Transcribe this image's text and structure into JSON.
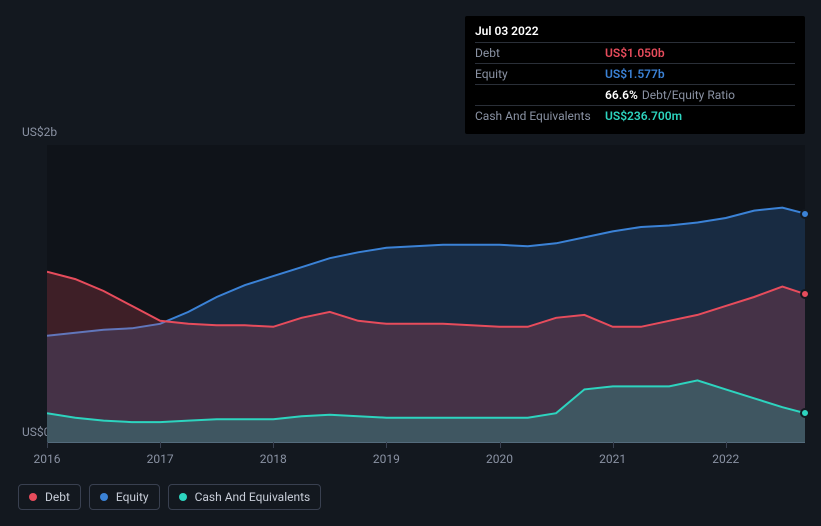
{
  "chart": {
    "type": "area",
    "background_color": "#13181f",
    "plot_background_color": "#0f1319",
    "grid_color": "#394050",
    "axis_text_color": "#8a92a3",
    "y_axis": {
      "labels": [
        "US$2b",
        "US$0"
      ],
      "min": 0,
      "max": 2.0,
      "label_fontsize": 12
    },
    "x_axis": {
      "labels": [
        "2016",
        "2017",
        "2018",
        "2019",
        "2020",
        "2021",
        "2022"
      ],
      "min": 2016.0,
      "max": 2022.7,
      "label_fontsize": 12
    },
    "series": [
      {
        "name": "Equity",
        "color": "#3b82d6",
        "points": [
          [
            2016.0,
            0.72
          ],
          [
            2016.25,
            0.74
          ],
          [
            2016.5,
            0.76
          ],
          [
            2016.75,
            0.77
          ],
          [
            2017.0,
            0.8
          ],
          [
            2017.25,
            0.88
          ],
          [
            2017.5,
            0.98
          ],
          [
            2017.75,
            1.06
          ],
          [
            2018.0,
            1.12
          ],
          [
            2018.25,
            1.18
          ],
          [
            2018.5,
            1.24
          ],
          [
            2018.75,
            1.28
          ],
          [
            2019.0,
            1.31
          ],
          [
            2019.25,
            1.32
          ],
          [
            2019.5,
            1.33
          ],
          [
            2019.75,
            1.33
          ],
          [
            2020.0,
            1.33
          ],
          [
            2020.25,
            1.32
          ],
          [
            2020.5,
            1.34
          ],
          [
            2020.75,
            1.38
          ],
          [
            2021.0,
            1.42
          ],
          [
            2021.25,
            1.45
          ],
          [
            2021.5,
            1.46
          ],
          [
            2021.75,
            1.48
          ],
          [
            2022.0,
            1.51
          ],
          [
            2022.25,
            1.56
          ],
          [
            2022.5,
            1.58
          ],
          [
            2022.7,
            1.54
          ]
        ]
      },
      {
        "name": "Debt",
        "color": "#e74c5c",
        "points": [
          [
            2016.0,
            1.15
          ],
          [
            2016.25,
            1.1
          ],
          [
            2016.5,
            1.02
          ],
          [
            2016.75,
            0.92
          ],
          [
            2017.0,
            0.82
          ],
          [
            2017.25,
            0.8
          ],
          [
            2017.5,
            0.79
          ],
          [
            2017.75,
            0.79
          ],
          [
            2018.0,
            0.78
          ],
          [
            2018.25,
            0.84
          ],
          [
            2018.5,
            0.88
          ],
          [
            2018.75,
            0.82
          ],
          [
            2019.0,
            0.8
          ],
          [
            2019.25,
            0.8
          ],
          [
            2019.5,
            0.8
          ],
          [
            2019.75,
            0.79
          ],
          [
            2020.0,
            0.78
          ],
          [
            2020.25,
            0.78
          ],
          [
            2020.5,
            0.84
          ],
          [
            2020.75,
            0.86
          ],
          [
            2021.0,
            0.78
          ],
          [
            2021.25,
            0.78
          ],
          [
            2021.5,
            0.82
          ],
          [
            2021.75,
            0.86
          ],
          [
            2022.0,
            0.92
          ],
          [
            2022.25,
            0.98
          ],
          [
            2022.5,
            1.05
          ],
          [
            2022.7,
            1.0
          ]
        ]
      },
      {
        "name": "Cash And Equivalents",
        "color": "#2dd4bf",
        "points": [
          [
            2016.0,
            0.2
          ],
          [
            2016.25,
            0.17
          ],
          [
            2016.5,
            0.15
          ],
          [
            2016.75,
            0.14
          ],
          [
            2017.0,
            0.14
          ],
          [
            2017.25,
            0.15
          ],
          [
            2017.5,
            0.16
          ],
          [
            2017.75,
            0.16
          ],
          [
            2018.0,
            0.16
          ],
          [
            2018.25,
            0.18
          ],
          [
            2018.5,
            0.19
          ],
          [
            2018.75,
            0.18
          ],
          [
            2019.0,
            0.17
          ],
          [
            2019.25,
            0.17
          ],
          [
            2019.5,
            0.17
          ],
          [
            2019.75,
            0.17
          ],
          [
            2020.0,
            0.17
          ],
          [
            2020.25,
            0.17
          ],
          [
            2020.5,
            0.2
          ],
          [
            2020.75,
            0.36
          ],
          [
            2021.0,
            0.38
          ],
          [
            2021.25,
            0.38
          ],
          [
            2021.5,
            0.38
          ],
          [
            2021.75,
            0.42
          ],
          [
            2022.0,
            0.36
          ],
          [
            2022.25,
            0.3
          ],
          [
            2022.5,
            0.24
          ],
          [
            2022.7,
            0.2
          ]
        ]
      }
    ],
    "markers": [
      {
        "series": 0,
        "x": 2022.7,
        "y": 1.54
      },
      {
        "series": 1,
        "x": 2022.7,
        "y": 1.0
      },
      {
        "series": 2,
        "x": 2022.7,
        "y": 0.2
      }
    ]
  },
  "tooltip": {
    "date": "Jul 03 2022",
    "rows": [
      {
        "label": "Debt",
        "value": "US$1.050b",
        "color": "#e74c5c"
      },
      {
        "label": "Equity",
        "value": "US$1.577b",
        "color": "#3b82d6"
      },
      {
        "label": "",
        "value": "66.6%",
        "suffix": "Debt/Equity Ratio",
        "color": "#ffffff"
      },
      {
        "label": "Cash And Equivalents",
        "value": "US$236.700m",
        "color": "#2dd4bf"
      }
    ]
  },
  "legend": {
    "items": [
      {
        "label": "Debt",
        "color": "#e74c5c"
      },
      {
        "label": "Equity",
        "color": "#3b82d6"
      },
      {
        "label": "Cash And Equivalents",
        "color": "#2dd4bf"
      }
    ]
  }
}
